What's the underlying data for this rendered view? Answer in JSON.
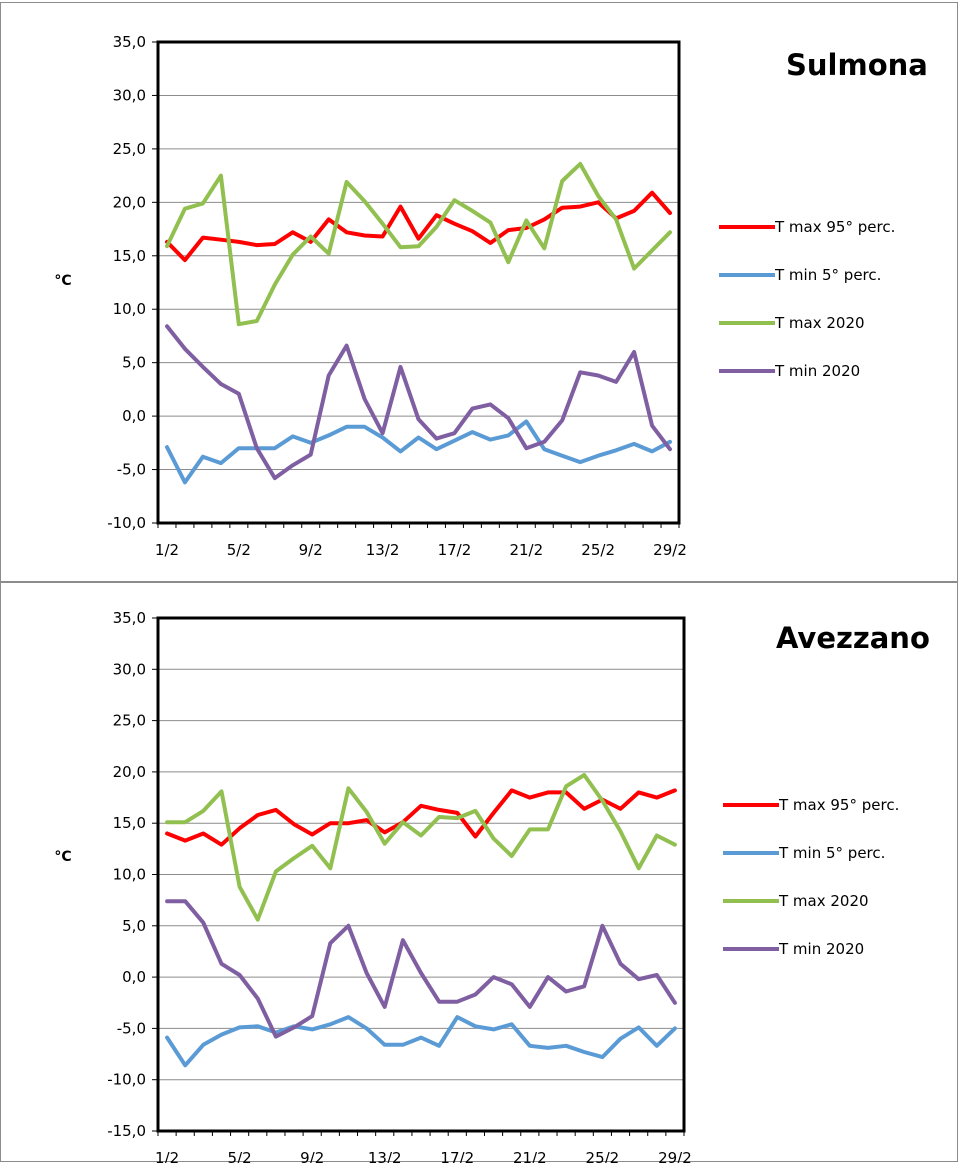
{
  "chart_data": [
    {
      "type": "line",
      "title": "Sulmona",
      "ylabel": "°C",
      "xlabel": "",
      "ylim": [
        -10,
        35
      ],
      "y_ticks": [
        "35,0",
        "30,0",
        "25,0",
        "20,0",
        "15,0",
        "10,0",
        "5,0",
        "0,0",
        "-5,0",
        "-10,0"
      ],
      "x_ticks": [
        "1/2",
        "5/2",
        "9/2",
        "13/2",
        "17/2",
        "21/2",
        "25/2",
        "29/2"
      ],
      "grid": true,
      "legend_position": "right",
      "series": [
        {
          "name": "T max 95° perc.",
          "color": "#ff0000",
          "values": [
            16.3,
            14.6,
            16.7,
            16.5,
            16.3,
            16.0,
            16.1,
            17.2,
            16.3,
            18.4,
            17.2,
            16.9,
            16.8,
            19.6,
            16.6,
            18.8,
            18.0,
            17.3,
            16.2,
            17.4,
            17.6,
            18.4,
            19.5,
            19.6,
            20.0,
            18.5,
            19.2,
            20.9,
            19.0
          ]
        },
        {
          "name": "T min 5° perc.",
          "color": "#5b9bd5",
          "values": [
            -2.9,
            -6.2,
            -3.8,
            -4.4,
            -3.0,
            -3.0,
            -3.0,
            -1.9,
            -2.5,
            -1.8,
            -1.0,
            -1.0,
            -2.0,
            -3.3,
            -2.0,
            -3.1,
            -2.3,
            -1.5,
            -2.2,
            -1.8,
            -0.5,
            -3.1,
            -3.7,
            -4.3,
            -3.7,
            -3.2,
            -2.6,
            -3.3,
            -2.4
          ]
        },
        {
          "name": "T max 2020",
          "color": "#92c050",
          "values": [
            15.9,
            19.4,
            19.9,
            22.5,
            8.6,
            8.9,
            12.3,
            15.1,
            16.8,
            15.2,
            21.9,
            20.1,
            18.0,
            15.8,
            15.9,
            17.7,
            20.2,
            19.2,
            18.1,
            14.4,
            18.3,
            15.7,
            22.0,
            23.6,
            20.6,
            18.4,
            13.8,
            15.5,
            17.2
          ]
        },
        {
          "name": "T min 2020",
          "color": "#7f5fa1",
          "values": [
            8.4,
            6.3,
            4.6,
            3.0,
            2.1,
            -3.0,
            -5.8,
            -4.6,
            -3.6,
            3.8,
            6.6,
            1.6,
            -1.6,
            4.6,
            -0.3,
            -2.1,
            -1.6,
            0.7,
            1.1,
            -0.2,
            -3.0,
            -2.4,
            -0.4,
            4.1,
            3.8,
            3.2,
            6.0,
            -0.9,
            -3.1
          ]
        }
      ]
    },
    {
      "type": "line",
      "title": "Avezzano",
      "ylabel": "°C",
      "xlabel": "",
      "ylim": [
        -15,
        35
      ],
      "y_ticks": [
        "35,0",
        "30,0",
        "25,0",
        "20,0",
        "15,0",
        "10,0",
        "5,0",
        "0,0",
        "-5,0",
        "-10,0",
        "-15,0"
      ],
      "x_ticks": [
        "1/2",
        "5/2",
        "9/2",
        "13/2",
        "17/2",
        "21/2",
        "25/2",
        "29/2"
      ],
      "grid": true,
      "legend_position": "right",
      "series": [
        {
          "name": "T max 95° perc.",
          "color": "#ff0000",
          "values": [
            14.0,
            13.3,
            14.0,
            12.9,
            14.5,
            15.8,
            16.3,
            14.9,
            13.9,
            15.0,
            15.0,
            15.3,
            14.1,
            15.1,
            16.7,
            16.3,
            16.0,
            13.7,
            16.0,
            18.2,
            17.5,
            18.0,
            18.0,
            16.4,
            17.3,
            16.4,
            18.0,
            17.5,
            18.2
          ]
        },
        {
          "name": "T min 5° perc.",
          "color": "#5b9bd5",
          "values": [
            -5.9,
            -8.6,
            -6.6,
            -5.6,
            -4.9,
            -4.8,
            -5.4,
            -4.8,
            -5.1,
            -4.6,
            -3.9,
            -5.0,
            -6.6,
            -6.6,
            -5.9,
            -6.7,
            -3.9,
            -4.8,
            -5.1,
            -4.6,
            -6.7,
            -6.9,
            -6.7,
            -7.3,
            -7.8,
            -6.0,
            -4.9,
            -6.7,
            -5.0
          ]
        },
        {
          "name": "T max 2020",
          "color": "#92c050",
          "values": [
            15.1,
            15.1,
            16.2,
            18.1,
            8.8,
            5.6,
            10.3,
            11.6,
            12.8,
            10.6,
            18.4,
            16.1,
            13.0,
            15.1,
            13.8,
            15.6,
            15.5,
            16.2,
            13.5,
            11.8,
            14.4,
            14.4,
            18.6,
            19.7,
            17.2,
            14.2,
            10.6,
            13.8,
            12.9
          ]
        },
        {
          "name": "T min 2020",
          "color": "#7f5fa1",
          "values": [
            7.4,
            7.4,
            5.3,
            1.3,
            0.2,
            -2.1,
            -5.8,
            -4.9,
            -3.8,
            3.3,
            5.0,
            0.4,
            -2.9,
            3.6,
            0.4,
            -2.4,
            -2.4,
            -1.7,
            0.0,
            -0.7,
            -2.9,
            0.0,
            -1.4,
            -0.9,
            5.0,
            1.3,
            -0.2,
            0.2,
            -2.5
          ]
        }
      ]
    }
  ]
}
